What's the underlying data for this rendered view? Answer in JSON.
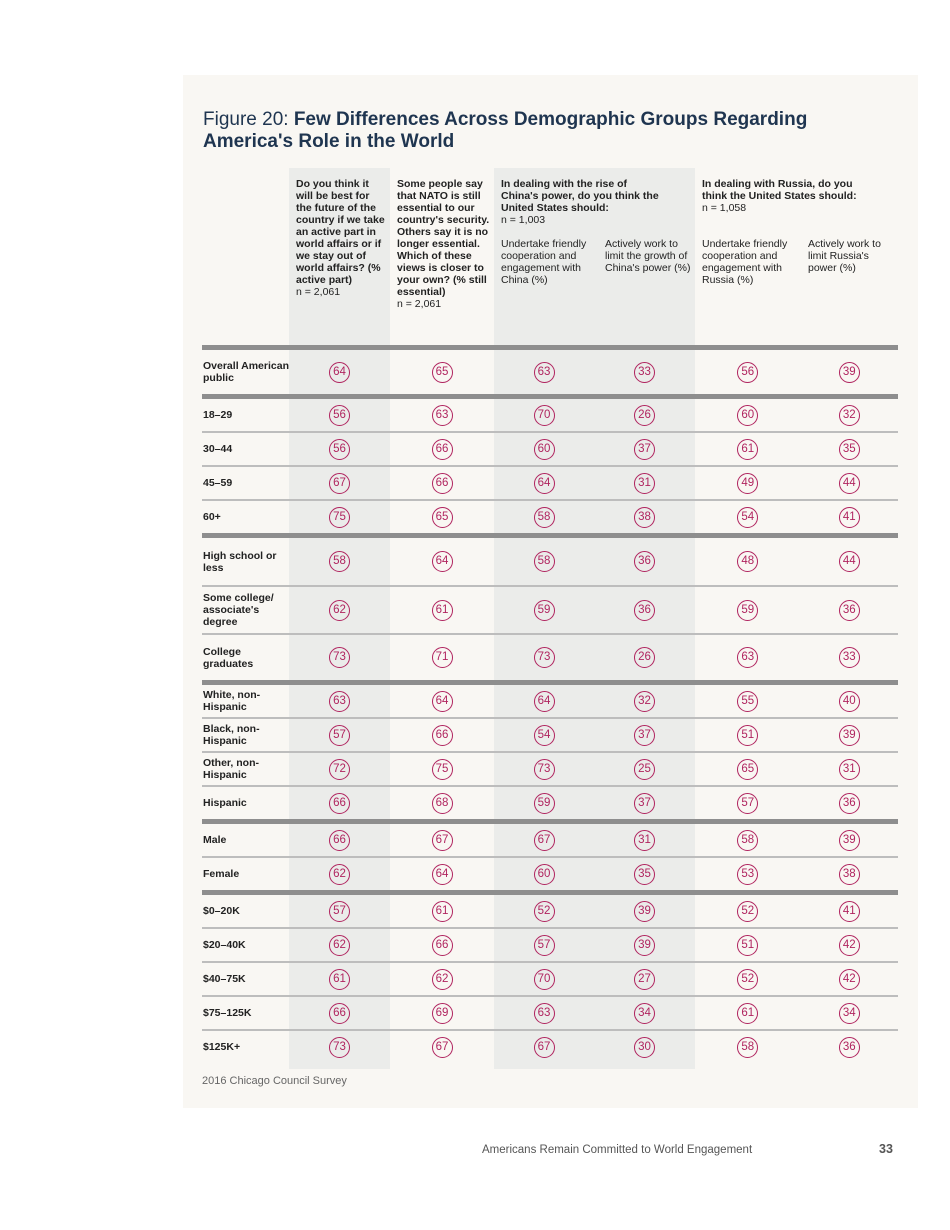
{
  "title": {
    "prefix": "Figure 20: ",
    "bold": "Few Differences Across Demographic Groups Regarding America's Role in the World"
  },
  "columns": {
    "q1": {
      "question": "Do you think it will be best for the future of the country if we take an active part in world affairs or if we stay out of world affairs? (% active part)",
      "n": "n = 2,061"
    },
    "q2": {
      "question": "Some people say that NATO is still essential to our country's security. Others say it is no longer essential. Which of these views is closer to your own? (% still essential)",
      "n": "n = 2,061"
    },
    "q3": {
      "question": "In dealing with the rise of China's power, do you think the United States should:",
      "n": "n = 1,003",
      "opt_a": "Undertake friendly cooperation and engagement with China (%)",
      "opt_b": "Actively work to limit the growth of China's power (%)"
    },
    "q4": {
      "question": "In dealing with Russia, do you think the United States should:",
      "n": "n = 1,058",
      "opt_a": "Undertake friendly cooperation and engagement with Russia (%)",
      "opt_b": "Actively work to limit Russia's power (%)"
    }
  },
  "groups": [
    [
      {
        "label": "Overall American public",
        "values": [
          64,
          65,
          63,
          33,
          56,
          39
        ]
      }
    ],
    [
      {
        "label": "18–29",
        "values": [
          56,
          63,
          70,
          26,
          60,
          32
        ]
      },
      {
        "label": "30–44",
        "values": [
          56,
          66,
          60,
          37,
          61,
          35
        ]
      },
      {
        "label": "45–59",
        "values": [
          67,
          66,
          64,
          31,
          49,
          44
        ]
      },
      {
        "label": "60+",
        "values": [
          75,
          65,
          58,
          38,
          54,
          41
        ]
      }
    ],
    [
      {
        "label": "High school or less",
        "values": [
          58,
          64,
          58,
          36,
          48,
          44
        ]
      },
      {
        "label": "Some college/ associate's degree",
        "values": [
          62,
          61,
          59,
          36,
          59,
          36
        ]
      },
      {
        "label": "College graduates",
        "values": [
          73,
          71,
          73,
          26,
          63,
          33
        ]
      }
    ],
    [
      {
        "label": "White, non-Hispanic",
        "values": [
          63,
          64,
          64,
          32,
          55,
          40
        ]
      },
      {
        "label": "Black, non-Hispanic",
        "values": [
          57,
          66,
          54,
          37,
          51,
          39
        ]
      },
      {
        "label": "Other, non-Hispanic",
        "values": [
          72,
          75,
          73,
          25,
          65,
          31
        ]
      },
      {
        "label": "Hispanic",
        "values": [
          66,
          68,
          59,
          37,
          57,
          36
        ]
      }
    ],
    [
      {
        "label": "Male",
        "values": [
          66,
          67,
          67,
          31,
          58,
          39
        ]
      },
      {
        "label": "Female",
        "values": [
          62,
          64,
          60,
          35,
          53,
          38
        ]
      }
    ],
    [
      {
        "label": "$0–20K",
        "values": [
          57,
          61,
          52,
          39,
          52,
          41
        ]
      },
      {
        "label": "$20–40K",
        "values": [
          62,
          66,
          57,
          39,
          51,
          42
        ]
      },
      {
        "label": "$40–75K",
        "values": [
          61,
          62,
          70,
          27,
          52,
          42
        ]
      },
      {
        "label": "$75–125K",
        "values": [
          66,
          69,
          63,
          34,
          61,
          34
        ]
      },
      {
        "label": "$125K+",
        "values": [
          73,
          67,
          67,
          30,
          58,
          36
        ]
      }
    ]
  ],
  "source": "2016 Chicago Council Survey",
  "footer": {
    "running_title": "Americans Remain Committed to World Engagement",
    "page_number": "33"
  },
  "colors": {
    "accent": "#b0245f",
    "title": "#1f3550",
    "shade": "#ebecea",
    "panel": "#f9f7f3"
  }
}
